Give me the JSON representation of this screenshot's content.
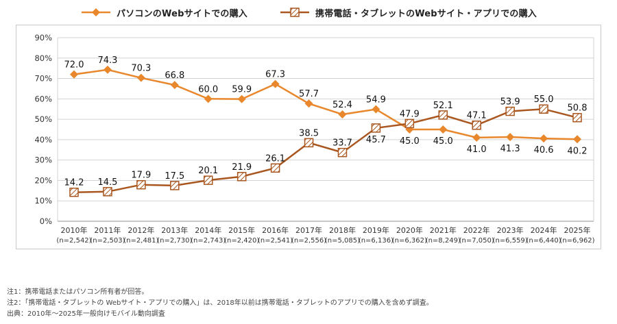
{
  "legend": [
    {
      "id": "pc",
      "label": "パソコンのWebサイトでの購入",
      "color": "#E8872B",
      "marker": "diamond"
    },
    {
      "id": "mobile",
      "label": "携帯電話・タブレットのWebサイト・アプリでの購入",
      "color": "#A9561F",
      "marker": "hatched-square"
    }
  ],
  "chart_data": {
    "type": "line",
    "title": "",
    "categories": [
      "2010年",
      "2011年",
      "2012年",
      "2013年",
      "2014年",
      "2015年",
      "2016年",
      "2017年",
      "2018年",
      "2019年",
      "2020年",
      "2021年",
      "2022年",
      "2023年",
      "2024年",
      "2025年"
    ],
    "sample_sizes": [
      "(n=2,542)",
      "(n=2,503)",
      "(n=2,481)",
      "(n=2,730)",
      "(n=2,743)",
      "(n=2,420)",
      "(n=2,541)",
      "(n=2,556)",
      "(n=5,085)",
      "(n=6,136)",
      "(n=6,362)",
      "(n=8,249)",
      "(n=7,050)",
      "(n=6,559)",
      "(n=6,440)",
      "(n=6,962)"
    ],
    "series": [
      {
        "name": "パソコンのWebサイトでの購入",
        "color": "#E8872B",
        "marker": "diamond",
        "values": [
          72.0,
          74.3,
          70.3,
          66.8,
          60.0,
          59.9,
          67.3,
          57.7,
          52.4,
          54.9,
          45.0,
          45.0,
          41.0,
          41.3,
          40.6,
          40.2
        ],
        "label_side": [
          "above",
          "above",
          "above",
          "above",
          "above",
          "above",
          "above",
          "above",
          "above",
          "above",
          "below",
          "below",
          "below",
          "below",
          "below",
          "below"
        ]
      },
      {
        "name": "携帯電話・タブレットのWebサイト・アプリでの購入",
        "color": "#A9561F",
        "marker": "hatched-square",
        "values": [
          14.2,
          14.5,
          17.9,
          17.5,
          20.1,
          21.9,
          26.1,
          38.5,
          33.7,
          45.7,
          47.9,
          52.1,
          47.1,
          53.9,
          55.0,
          50.8
        ],
        "label_side": [
          "above",
          "above",
          "above",
          "above",
          "above",
          "above",
          "above",
          "above",
          "above",
          "below",
          "above",
          "above",
          "above",
          "above",
          "above",
          "above"
        ]
      }
    ],
    "ylim": [
      0,
      90
    ],
    "ytick_step": 10,
    "ytick_suffix": "%",
    "grid": true,
    "legend_position": "top"
  },
  "notes": [
    "注1：携帯電話またはパソコン所有者が回答。",
    "注2：「携帯電話・タブレットの Webサイト・アプリでの購入」は、2018年以前は携帯電話・タブレットのアプリでの購入を含めず調査。",
    "出典：2010年～2025年一般向けモバイル動向調査"
  ]
}
